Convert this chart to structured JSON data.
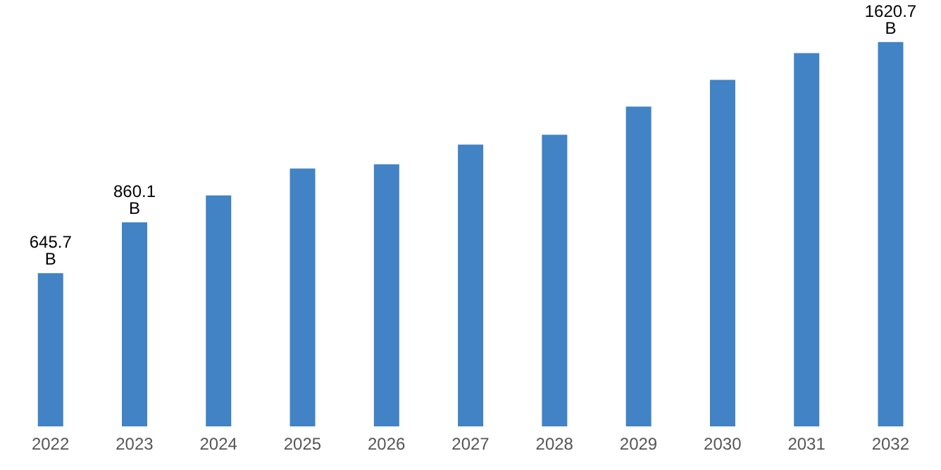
{
  "chart_data": {
    "type": "bar",
    "categories": [
      "2022",
      "2023",
      "2024",
      "2025",
      "2026",
      "2027",
      "2028",
      "2029",
      "2030",
      "2031",
      "2032"
    ],
    "values": [
      645.7,
      860.1,
      974,
      1087,
      1105,
      1188,
      1230,
      1348,
      1461,
      1574,
      1620.7
    ],
    "value_labels": [
      "645.7 B",
      "860.1 B",
      null,
      null,
      null,
      null,
      null,
      null,
      null,
      null,
      "1620.7 B"
    ],
    "color": "#4183c4",
    "grid": false,
    "legend": false
  }
}
